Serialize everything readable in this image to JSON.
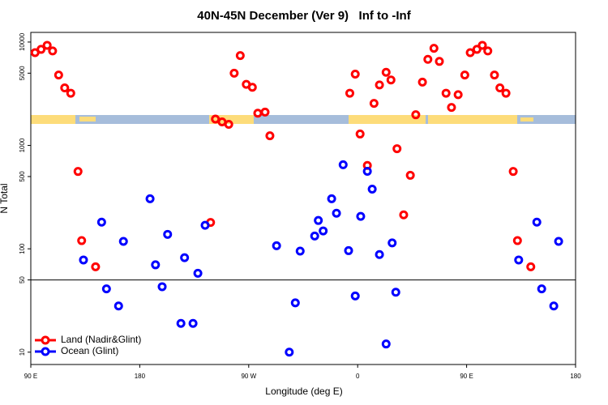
{
  "chart_data": {
    "type": "scatter",
    "title": "40N-45N December (Ver 9)   Inf to -Inf",
    "xlabel": "Longitude (deg E)",
    "ylabel": "N Total",
    "xlim": [
      -270,
      180
    ],
    "xticks": [
      {
        "value": -270,
        "label": "90 E"
      },
      {
        "value": -180,
        "label": "180"
      },
      {
        "value": -90,
        "label": "90 W"
      },
      0,
      {
        "value": 90,
        "label": "90 E"
      },
      180
    ],
    "ylim": [
      7.6,
      12400
    ],
    "ylog": true,
    "yticks": [
      10,
      50,
      100,
      500,
      1000,
      5000,
      10000
    ],
    "hline": 50,
    "legend": "bottomleft",
    "series": [
      {
        "name": "Land (Nadir&Glint)",
        "color": "#ff0000",
        "x": [
          -266.5,
          -261.5,
          -256.5,
          -252,
          -247,
          -242,
          -237,
          -231,
          -228,
          -216.5,
          -121.5,
          -117.5,
          -112,
          -106.5,
          -102,
          -97,
          -92,
          -87,
          -82.5,
          -76.5,
          -72.5,
          -6.5,
          -2,
          2,
          8,
          13.5,
          18,
          23.5,
          27.5,
          32.5,
          38,
          43.5,
          48,
          53.5,
          58,
          63,
          67.5,
          73,
          77.5,
          83,
          88.5,
          93,
          98.5,
          103,
          107.5,
          113,
          117.5,
          122.5,
          128.5,
          132,
          143
        ],
        "values": [
          7900,
          8500,
          9300,
          8200,
          4800,
          3600,
          3200,
          560,
          120,
          67,
          180,
          1800,
          1690,
          1600,
          5000,
          7400,
          3900,
          3650,
          2050,
          2100,
          1240,
          3200,
          4900,
          1290,
          640,
          2550,
          3850,
          5100,
          4300,
          930,
          213,
          514,
          1980,
          4100,
          6800,
          8700,
          6500,
          3200,
          2330,
          3100,
          4800,
          7900,
          8500,
          9300,
          8200,
          4800,
          3600,
          3200,
          560,
          120,
          67
        ]
      },
      {
        "name": "Ocean (Glint)",
        "color": "#0000ff",
        "x": [
          -226.5,
          -211.5,
          -207.5,
          -197.5,
          -193.5,
          -171.5,
          -167,
          -161.5,
          -157,
          -146,
          -143,
          -136,
          -132,
          -126,
          -67,
          -56.5,
          -51.5,
          -47.5,
          -35.5,
          -32.5,
          -28.5,
          -21.5,
          -17.5,
          -12,
          -7.5,
          -2,
          2.5,
          8,
          12,
          18,
          23.5,
          28.5,
          31.5,
          133,
          148,
          152,
          162,
          166
        ],
        "values": [
          78,
          181,
          41,
          28,
          118,
          305,
          70,
          43,
          138,
          19,
          82,
          19,
          58,
          169,
          107,
          10,
          30,
          95,
          133,
          188,
          149,
          305,
          221,
          650,
          96,
          35,
          206,
          562,
          378,
          88,
          12,
          114,
          38,
          78,
          181,
          41,
          28,
          118
        ]
      }
    ]
  }
}
